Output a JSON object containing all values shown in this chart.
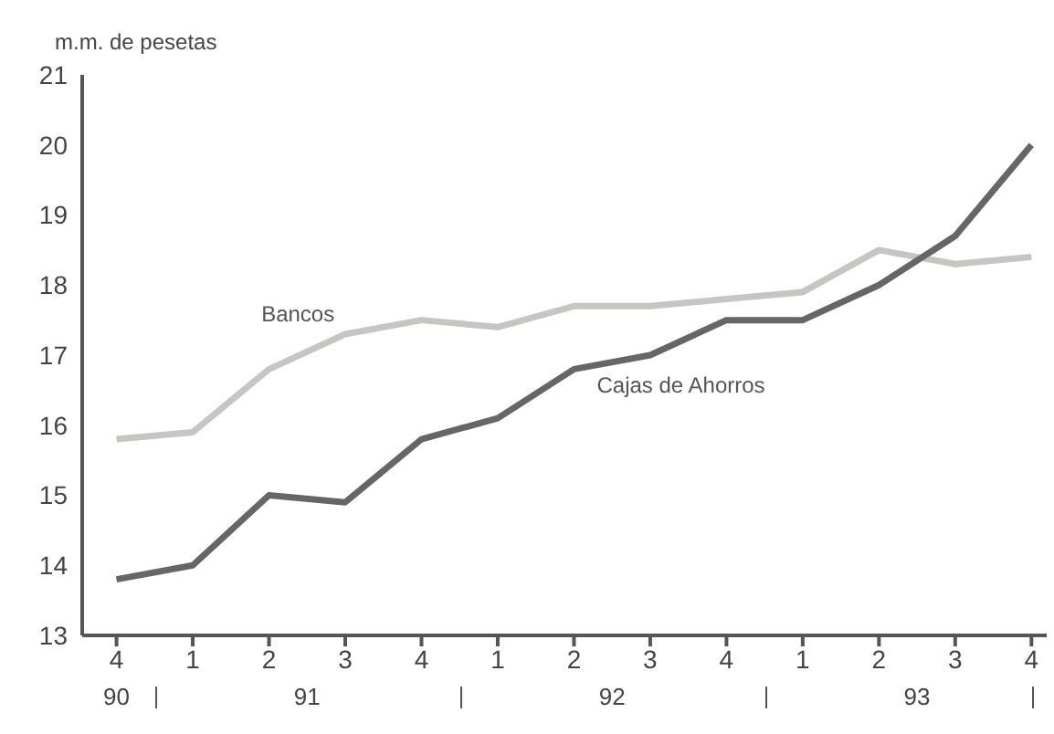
{
  "chart_data": {
    "type": "line",
    "ylabel": "m.m. de pesetas",
    "categories": [
      "4",
      "1",
      "2",
      "3",
      "4",
      "1",
      "2",
      "3",
      "4",
      "1",
      "2",
      "3",
      "4"
    ],
    "series": [
      {
        "name": "Bancos",
        "color": "#c4c6c2",
        "values": [
          15.8,
          15.9,
          16.8,
          17.3,
          17.5,
          17.4,
          17.7,
          17.7,
          17.8,
          17.9,
          18.5,
          18.3,
          18.4
        ]
      },
      {
        "name": "Cajas de Ahorros",
        "color": "#666666",
        "values": [
          13.8,
          14.0,
          15.0,
          14.9,
          15.8,
          16.1,
          16.8,
          17.0,
          17.5,
          17.5,
          18.0,
          18.7,
          20.0
        ]
      }
    ],
    "annotations": [
      "90",
      "91",
      "92",
      "93"
    ],
    "ylim": [
      13,
      21
    ],
    "yticks": [
      13,
      14,
      15,
      16,
      17,
      18,
      19,
      20,
      21
    ],
    "grid": false,
    "legend": false,
    "marker": "none",
    "line_style": "solid"
  }
}
